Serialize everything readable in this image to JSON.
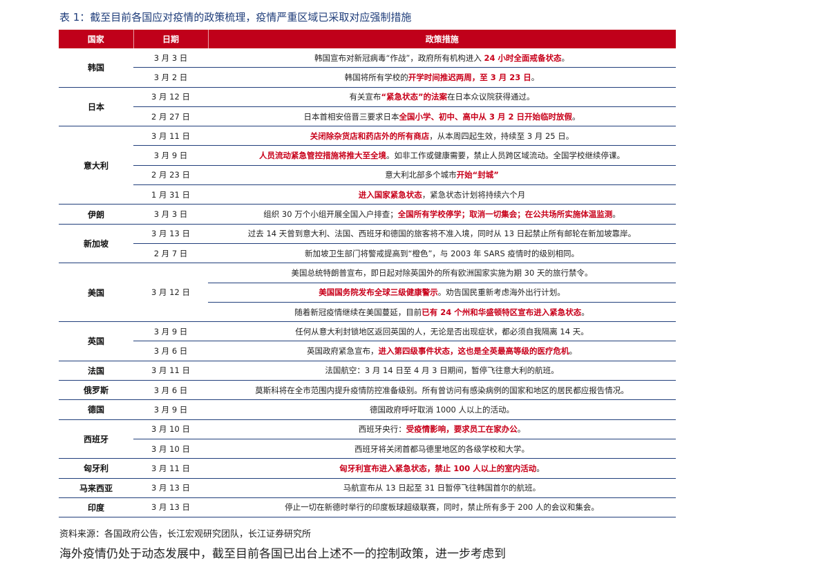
{
  "title": "表 1：截至目前各国应对疫情的政策梳理，疫情严重区域已采取对应强制措施",
  "headers": {
    "country": "国家",
    "date": "日期",
    "measure": "政策措施"
  },
  "groups": [
    {
      "country": "韩国",
      "rows": [
        {
          "date": "3 月 3 日",
          "parts": [
            {
              "t": "韩国宣布对新冠病毒“作战”，政府所有机构进入 ",
              "h": false
            },
            {
              "t": "24 小时全面戒备状态",
              "h": true
            },
            {
              "t": "。",
              "h": false
            }
          ]
        },
        {
          "date": "3 月 2 日",
          "parts": [
            {
              "t": "韩国将所有学校的",
              "h": false
            },
            {
              "t": "开学时间推迟两周，至 3 月 23 日",
              "h": true
            },
            {
              "t": "。",
              "h": false
            }
          ]
        }
      ]
    },
    {
      "country": "日本",
      "rows": [
        {
          "date": "3 月 12 日",
          "parts": [
            {
              "t": "有关宣布",
              "h": false
            },
            {
              "t": "“紧急状态”的法案",
              "h": true
            },
            {
              "t": "在日本众议院获得通过。",
              "h": false
            }
          ]
        },
        {
          "date": "2 月 27 日",
          "parts": [
            {
              "t": "日本首相安倍晋三要求日本",
              "h": false
            },
            {
              "t": "全国小学、初中、高中从 3 月 2 日开始临时放假",
              "h": true
            },
            {
              "t": "。",
              "h": false
            }
          ]
        }
      ]
    },
    {
      "country": "意大利",
      "rows": [
        {
          "date": "3 月 11 日",
          "parts": [
            {
              "t": "关闭除杂货店和药店外的所有商店",
              "h": true
            },
            {
              "t": "，从本周四起生效，持续至 3 月 25 日。",
              "h": false
            }
          ]
        },
        {
          "date": "3 月 9 日",
          "parts": [
            {
              "t": "人员流动紧急管控措施将推大至全境",
              "h": true
            },
            {
              "t": "。如非工作或健康需要，禁止人员跨区域流动。全国学校继续停课。",
              "h": false
            }
          ]
        },
        {
          "date": "2 月 23 日",
          "parts": [
            {
              "t": "意大利北部多个城市",
              "h": false
            },
            {
              "t": "开始“封城”",
              "h": true
            }
          ]
        },
        {
          "date": "1 月 31 日",
          "parts": [
            {
              "t": "进入国家紧急状态",
              "h": true
            },
            {
              "t": "，紧急状态计划将持续六个月",
              "h": false
            }
          ]
        }
      ]
    },
    {
      "country": "伊朗",
      "rows": [
        {
          "date": "3 月 3 日",
          "parts": [
            {
              "t": "组织 30 万个小组开展全国入户排查；",
              "h": false
            },
            {
              "t": "全国所有学校停学；取消一切集会；在公共场所实施体温监测",
              "h": true
            },
            {
              "t": "。",
              "h": false
            }
          ]
        }
      ]
    },
    {
      "country": "新加坡",
      "rows": [
        {
          "date": "3 月 13 日",
          "parts": [
            {
              "t": "过去 14 天曾到意大利、法国、西班牙和德国的旅客将不准入境，同时从 13 日起禁止所有邮轮在新加坡靠岸。",
              "h": false
            }
          ]
        },
        {
          "date": "2 月 7 日",
          "parts": [
            {
              "t": "新加坡卫生部门将警戒提高到“橙色”，与 2003 年 SARS 疫情时的级别相同。",
              "h": false
            }
          ]
        }
      ]
    },
    {
      "country": "美国",
      "date": "3 月 12 日",
      "rows": [
        {
          "parts": [
            {
              "t": "美国总统特朗普宣布，即日起对除英国外的所有欧洲国家实施为期 30 天的旅行禁令。",
              "h": false
            }
          ]
        },
        {
          "parts": [
            {
              "t": "美国国务院发布全球三级健康警示",
              "h": true
            },
            {
              "t": "。劝告国民重新考虑海外出行计划。",
              "h": false
            }
          ]
        },
        {
          "parts": [
            {
              "t": "随着新冠疫情继续在美国蔓延，目前",
              "h": false
            },
            {
              "t": "已有 24 个州和华盛顿特区宣布进入紧急状态",
              "h": true
            },
            {
              "t": "。",
              "h": false
            }
          ]
        }
      ]
    },
    {
      "country": "英国",
      "rows": [
        {
          "date": "3 月 9 日",
          "parts": [
            {
              "t": "任何从意大利封锁地区返回英国的人，无论是否出现症状，都必须自我隔离 14 天。",
              "h": false
            }
          ]
        },
        {
          "date": "3 月 6 日",
          "parts": [
            {
              "t": "英国政府紧急宣布，",
              "h": false
            },
            {
              "t": "进入第四级事件状态，这也是全英最高等级的医疗危机",
              "h": true
            },
            {
              "t": "。",
              "h": false
            }
          ]
        }
      ]
    },
    {
      "country": "法国",
      "rows": [
        {
          "date": "3 月 11 日",
          "parts": [
            {
              "t": "法国航空：3 月 14 日至 4 月 3 日期间，暂停飞往意大利的航班。",
              "h": false
            }
          ]
        }
      ]
    },
    {
      "country": "俄罗斯",
      "rows": [
        {
          "date": "3 月 6 日",
          "parts": [
            {
              "t": "莫斯科将在全市范围内提升疫情防控准备级别。所有曾访问有感染病例的国家和地区的居民都应报告情况。",
              "h": false
            }
          ]
        }
      ]
    },
    {
      "country": "德国",
      "rows": [
        {
          "date": "3 月 9 日",
          "parts": [
            {
              "t": "德国政府呼吁取消 1000 人以上的活动。",
              "h": false
            }
          ]
        }
      ]
    },
    {
      "country": "西班牙",
      "rows": [
        {
          "date": "3 月 10 日",
          "parts": [
            {
              "t": "西班牙央行：",
              "h": false
            },
            {
              "t": "受疫情影响，要求员工在家办公",
              "h": true
            },
            {
              "t": "。",
              "h": false
            }
          ]
        },
        {
          "date": "3 月 10 日",
          "parts": [
            {
              "t": "西班牙将关闭首都马德里地区的各级学校和大学。",
              "h": false
            }
          ]
        }
      ]
    },
    {
      "country": "匈牙利",
      "rows": [
        {
          "date": "3 月 11 日",
          "parts": [
            {
              "t": "匈牙利宣布进入紧急状态，禁止 100 人以上的室内活动",
              "h": true
            },
            {
              "t": "。",
              "h": false
            }
          ]
        }
      ]
    },
    {
      "country": "马来西亚",
      "rows": [
        {
          "date": "3 月 13 日",
          "parts": [
            {
              "t": "马航宣布从 13 日起至 31 日暂停飞往韩国首尔的航班。",
              "h": false
            }
          ]
        }
      ]
    },
    {
      "country": "印度",
      "rows": [
        {
          "date": "3 月 13 日",
          "parts": [
            {
              "t": "停止一切在新德时举行的印度板球超级联赛，同时，禁止所有多于 200 人的会议和集会。",
              "h": false
            }
          ]
        }
      ]
    }
  ],
  "source": "资料来源：各国政府公告，长江宏观研究团队，长江证券研究所",
  "cutoff_line": "海外疫情仍处于动态发展中，截至目前各国已出台上述不一的控制政策，进一步考虑到"
}
